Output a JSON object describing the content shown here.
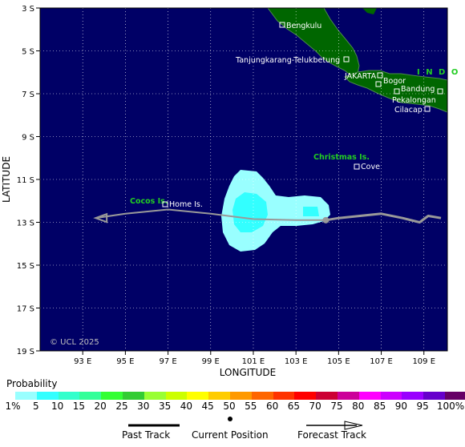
{
  "map": {
    "x_axis_title": "LONGITUDE",
    "y_axis_title": "LATITUDE",
    "lon_ticks": [
      "93 E",
      "95 E",
      "97 E",
      "99 E",
      "101 E",
      "103 E",
      "105 E",
      "107 E",
      "109 E"
    ],
    "lat_ticks": [
      "3 S",
      "5 S",
      "7 S",
      "9 S",
      "11 S",
      "13 S",
      "15 S",
      "17 S",
      "19 S"
    ],
    "copyright": "© UCL 2025",
    "colors": {
      "ocean": "#000066",
      "land": "#006600",
      "past_track": "#999999",
      "label_green": "#22cc22"
    },
    "places": [
      {
        "name": "Bengkulu"
      },
      {
        "name": "Tanjungkarang-Telukbetung"
      },
      {
        "name": "JAKARTA"
      },
      {
        "name": "Bogor"
      },
      {
        "name": "Bandung"
      },
      {
        "name": "Pekalongan"
      },
      {
        "name": "Cilacap"
      },
      {
        "name": "Cove"
      },
      {
        "name": "Home Is."
      }
    ],
    "island_labels": [
      "Christmas Is.",
      "Cocos Is."
    ],
    "country_label": "I N D O",
    "track": {
      "past": [
        [
          109.8,
          -12.8
        ],
        [
          109.2,
          -12.7
        ],
        [
          108.8,
          -13.0
        ],
        [
          108.0,
          -12.8
        ],
        [
          107.0,
          -12.6
        ],
        [
          106.0,
          -12.7
        ],
        [
          105.0,
          -12.8
        ],
        [
          104.4,
          -12.9
        ]
      ],
      "current": [
        104.4,
        -12.9
      ],
      "forecast": [
        [
          104.4,
          -12.9
        ],
        [
          103.0,
          -12.9
        ],
        [
          101.0,
          -12.85
        ],
        [
          99.0,
          -12.6
        ],
        [
          97.0,
          -12.4
        ],
        [
          95.0,
          -12.6
        ],
        [
          93.6,
          -12.8
        ]
      ]
    }
  },
  "legend": {
    "title": "Probability",
    "ticks": [
      "1%",
      "5",
      "10",
      "15",
      "20",
      "25",
      "30",
      "35",
      "40",
      "45",
      "50",
      "55",
      "60",
      "65",
      "70",
      "75",
      "80",
      "85",
      "90",
      "95",
      "100%"
    ],
    "colors": [
      "#99ffff",
      "#33ffff",
      "#33ffcc",
      "#33ff99",
      "#33ff33",
      "#33cc33",
      "#99ff33",
      "#ccff00",
      "#ffff00",
      "#ffcc00",
      "#ff9900",
      "#ff6600",
      "#ff3300",
      "#ff0000",
      "#cc0033",
      "#cc0099",
      "#ff00ff",
      "#cc00ff",
      "#9900ff",
      "#6600cc",
      "#660066"
    ]
  },
  "key": {
    "past_track": "Past Track",
    "current_position": "Current Position",
    "forecast_track": "Forecast Track"
  }
}
